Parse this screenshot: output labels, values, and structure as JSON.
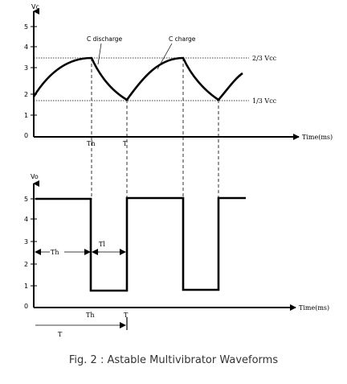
{
  "top_graph": {
    "ylabel": "Vc",
    "y_ticks": [
      "0",
      "1",
      "2",
      "3",
      "4",
      "5"
    ],
    "xlabel": "Time(ms)",
    "label_discharge": "C discharge",
    "label_charge": "C charge",
    "level_upper": "2/3 Vcc",
    "level_lower": "1/3 Vcc",
    "tick_th": "Th",
    "tick_t": "T"
  },
  "bottom_graph": {
    "ylabel": "Vo",
    "y_ticks": [
      "0",
      "1",
      "2",
      "3",
      "4",
      "5"
    ],
    "xlabel": "Time(ms)",
    "th_arrow_label": "Th",
    "tl_arrow_label": "Tl",
    "tick_th": "Th",
    "tick_t": "T",
    "period_label": "T"
  },
  "caption": "Fig. 2 : Astable Multivibrator Waveforms",
  "colors": {
    "ink": "#000000",
    "caption": "#333333"
  }
}
